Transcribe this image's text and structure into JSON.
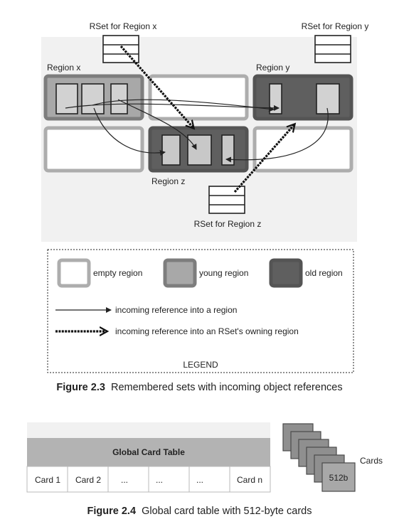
{
  "figure23": {
    "rset_x": "RSet for Region x",
    "rset_y": "RSet for Region y",
    "rset_z": "RSet for Region z",
    "region_x": "Region x",
    "region_y": "Region y",
    "region_z": "Region z",
    "legend": {
      "empty": "empty region",
      "young": "young region",
      "old": "old region",
      "ref_region": "incoming reference into a region",
      "ref_rset": "incoming reference into an RSet's owning region",
      "title": "LEGEND"
    },
    "caption_number": "Figure 2.3",
    "caption_text": "Remembered sets with incoming object references"
  },
  "figure24": {
    "table_title": "Global Card Table",
    "cells": [
      "Card 1",
      "Card 2",
      "...",
      "...",
      "...",
      "Card n"
    ],
    "cards_label": "Cards",
    "card_size": "512b",
    "caption_number": "Figure 2.4",
    "caption_text": "Global card table with 512-byte cards"
  },
  "colors": {
    "background_panel": "#f1f1f1",
    "empty_border": "#adadad",
    "young_fill": "#a8a8a8",
    "old_fill": "#5f5f5f",
    "table_header": "#b3b3b3"
  }
}
